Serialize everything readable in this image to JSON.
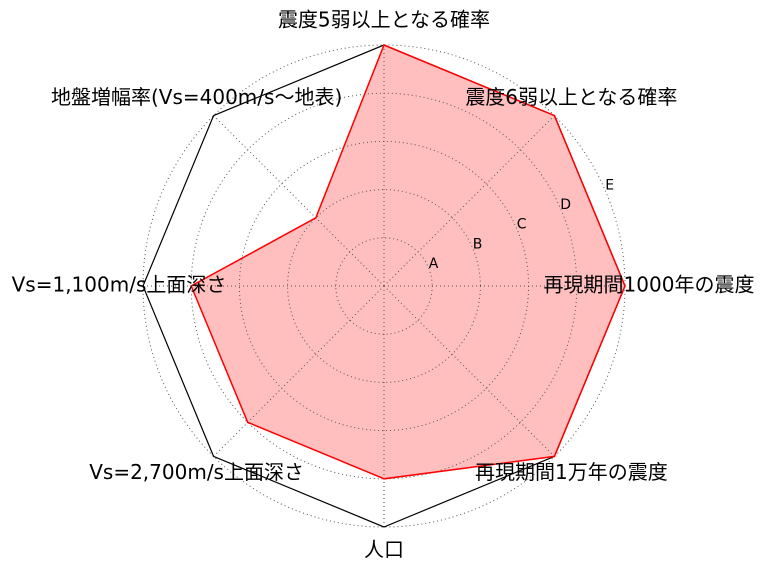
{
  "chart_data": {
    "type": "radar",
    "categories": [
      "震度5弱以上となる確率",
      "震度6弱以上となる確率",
      "再現期間1000年の震度",
      "再現期間1万年の震度",
      "人口",
      "Vs=2,700m/s上面深さ",
      "Vs=1,100m/s上面深さ",
      "地盤増幅率(Vs=400m/s～地表)"
    ],
    "values": [
      5,
      5,
      5,
      5,
      4,
      4,
      4,
      2
    ],
    "rlim": [
      0,
      5
    ],
    "radial_ticks": [
      1,
      2,
      3,
      4,
      5
    ],
    "radial_tick_labels": [
      "A",
      "B",
      "C",
      "D",
      "E"
    ],
    "grid": true,
    "frame": "polygon",
    "colors": {
      "line": "#ff0000",
      "fill": "#ffbfbf",
      "frame": "#000000",
      "grid": "#555555"
    }
  }
}
